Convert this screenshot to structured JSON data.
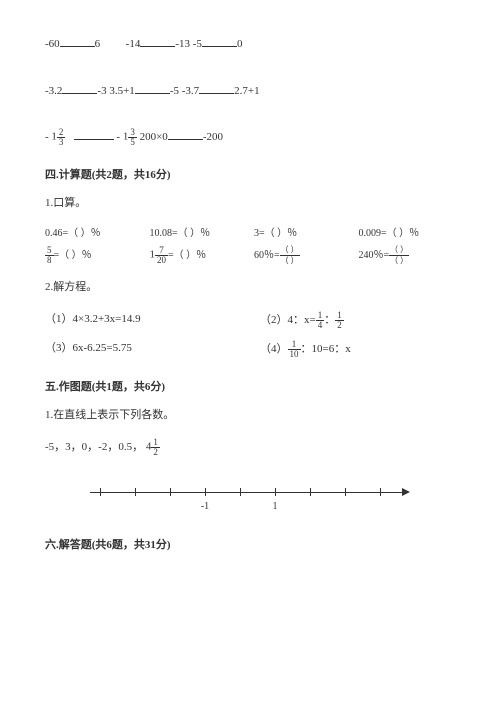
{
  "line1": {
    "a1": "-60",
    "a2": "6",
    "b1": "-14",
    "b2": "-13",
    "c1": "-5",
    "c2": "0"
  },
  "line2": {
    "a1": "-3.2",
    "a2": "-3",
    "b1": "3.5+1",
    "b2": "-5",
    "c1": "-3.7",
    "c2": "2.7+1"
  },
  "line3": {
    "left_sign": "-",
    "left_whole": "1",
    "left_num": "2",
    "left_den": "3",
    "right_sign": "-",
    "right_whole": "1",
    "right_num": "3",
    "right_den": "5",
    "c1": "200×0",
    "c2": "-200"
  },
  "sec4": {
    "title": "四.计算题(共2题，共16分)",
    "q1": "1.口算。",
    "r1c1a": "0.46=（  ）％",
    "r1c2a": "10.08=（  ）％",
    "r1c3a": "3=（  ）％",
    "r1c4a": "0.009=（  ）％",
    "r2c1_num": "5",
    "r2c1_den": "8",
    "r2c1_rest": "=（  ）％",
    "r2c2_whole": "1",
    "r2c2_num": "7",
    "r2c2_den": "20",
    "r2c2_rest": "=（  ）％",
    "r2c3_a": "60％=",
    "r2c3_pn": "（  ）",
    "r2c3_pd": "（  ）",
    "r2c4_a": "240％=",
    "r2c4_pn": "（  ）",
    "r2c4_pd": "（  ）",
    "q2": "2.解方程。",
    "e1": "（1）4×3.2+3x=14.9",
    "e2a": "（2）4：x=",
    "e2_n1": "1",
    "e2_d1": "4",
    "e2_mid": "：",
    "e2_n2": "1",
    "e2_d2": "2",
    "e3": "（3）6x-6.25=5.75",
    "e4a": "（4）",
    "e4_n1": "1",
    "e4_d1": "10",
    "e4b": "：10=6：x"
  },
  "sec5": {
    "title": "五.作图题(共1题，共6分)",
    "q1": "1.在直线上表示下列各数。",
    "nums_a": "-5，3，0，-2，0.5，",
    "mix_whole": "4",
    "mix_num": "1",
    "mix_den": "2",
    "axis_neg1": "-1",
    "axis_pos1": "1",
    "tick_positions": [
      10,
      45,
      80,
      115,
      150,
      185,
      220,
      255,
      290
    ],
    "tick_neg1": 115,
    "tick_pos1": 185
  },
  "sec6": {
    "title": "六.解答题(共6题，共31分)"
  }
}
